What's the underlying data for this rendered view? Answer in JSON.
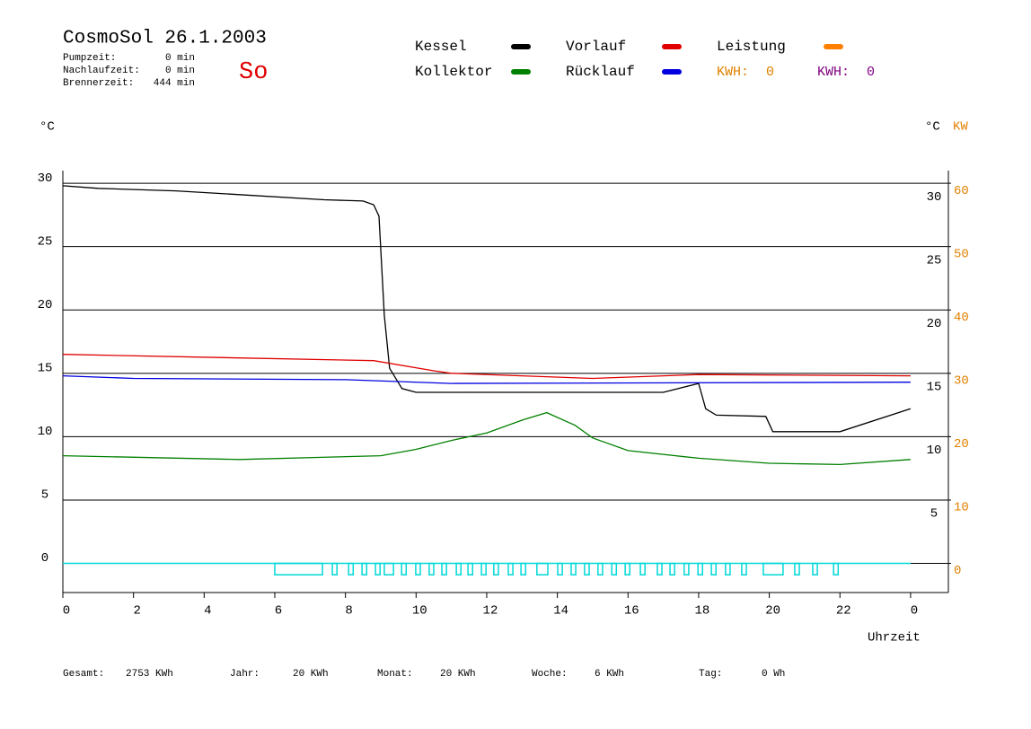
{
  "chart_data": {
    "type": "line",
    "title": "CosmoSol 26.1.2003",
    "day": "So",
    "info": [
      {
        "label": "Pumpzeit:",
        "value": "0 min"
      },
      {
        "label": "Nachlaufzeit:",
        "value": "0 min"
      },
      {
        "label": "Brennerzeit:",
        "value": "444 min"
      }
    ],
    "y_label": "°C",
    "y2_label_left": "°C",
    "y2_label": "KW",
    "x_label": "Uhrzeit",
    "xlim": [
      0,
      25.07
    ],
    "xticks": [
      0,
      2,
      4,
      6,
      8,
      10,
      12,
      14,
      16,
      18,
      20,
      22,
      {
        "value": 24,
        "label": "0"
      }
    ],
    "ylim": [
      -2.3,
      31
    ],
    "yticks": [
      0,
      5,
      10,
      15,
      20,
      25,
      30
    ],
    "y2lim": [
      -4.6,
      62
    ],
    "y2ticks": [
      0,
      10,
      20,
      30,
      40,
      50,
      60
    ],
    "y2_color": "#e08000",
    "grid": true,
    "series": [
      {
        "name": "Kessel",
        "color": "#000000",
        "x": [
          0,
          1,
          3.2,
          7.4,
          8.5,
          8.8,
          8.95,
          9.1,
          9.25,
          9.6,
          10,
          17,
          18,
          18.2,
          18.5,
          19.9,
          20.1,
          22,
          24
        ],
        "values": [
          29.8,
          29.6,
          29.4,
          28.7,
          28.6,
          28.3,
          27.4,
          19.6,
          15.4,
          13.8,
          13.5,
          13.5,
          14.2,
          12.2,
          11.7,
          11.6,
          10.4,
          10.4,
          12.2
        ]
      },
      {
        "name": "Kollektor",
        "color": "#008000",
        "x": [
          0,
          5,
          9,
          10,
          11,
          12,
          13,
          13.7,
          14.5,
          15,
          16,
          18,
          20,
          22,
          24
        ],
        "values": [
          8.5,
          8.2,
          8.5,
          9.0,
          9.7,
          10.3,
          11.3,
          11.9,
          10.9,
          9.9,
          8.9,
          8.3,
          7.9,
          7.8,
          8.2
        ]
      },
      {
        "name": "Vorlauf",
        "color": "#e00000",
        "x": [
          0,
          8.8,
          10.5,
          11,
          15,
          18,
          24
        ],
        "values": [
          16.5,
          16.0,
          15.2,
          15.0,
          14.6,
          14.9,
          14.8
        ]
      },
      {
        "name": "Rücklauf",
        "color": "#0000e0",
        "x": [
          0,
          2,
          8,
          11,
          24
        ],
        "values": [
          14.8,
          14.6,
          14.5,
          14.2,
          14.3
        ]
      },
      {
        "name": "Leistung",
        "color": "#ff8000",
        "x": [],
        "values": []
      }
    ],
    "kwh": [
      {
        "label": "KWH:",
        "value": 0,
        "color": "#e08000"
      },
      {
        "label": "KWH:",
        "value": 0,
        "color": "#800080"
      }
    ],
    "pump": {
      "color": "#00d8d8",
      "base": 0,
      "level": -0.9,
      "end": 24,
      "spans": [
        [
          6,
          7.35
        ],
        [
          7.63,
          7.76
        ],
        [
          8.09,
          8.22
        ],
        [
          8.47,
          8.6
        ],
        [
          8.85,
          8.98
        ],
        [
          9.1,
          9.36
        ],
        [
          9.59,
          9.72
        ],
        [
          9.99,
          10.12
        ],
        [
          10.37,
          10.5
        ],
        [
          10.73,
          10.86
        ],
        [
          11.14,
          11.27
        ],
        [
          11.47,
          11.6
        ],
        [
          11.85,
          11.98
        ],
        [
          12.2,
          12.33
        ],
        [
          12.61,
          12.74
        ],
        [
          12.97,
          13.1
        ],
        [
          13.42,
          13.73
        ],
        [
          14.01,
          14.14
        ],
        [
          14.39,
          14.52
        ],
        [
          14.77,
          14.9
        ],
        [
          15.15,
          15.28
        ],
        [
          15.54,
          15.67
        ],
        [
          15.92,
          16.05
        ],
        [
          16.35,
          16.48
        ],
        [
          16.83,
          16.96
        ],
        [
          17.19,
          17.32
        ],
        [
          17.59,
          17.72
        ],
        [
          17.98,
          18.11
        ],
        [
          18.36,
          18.49
        ],
        [
          18.76,
          18.89
        ],
        [
          19.22,
          19.35
        ],
        [
          19.83,
          20.39
        ],
        [
          20.72,
          20.85
        ],
        [
          21.23,
          21.36
        ],
        [
          21.82,
          21.95
        ]
      ]
    },
    "totals": [
      {
        "label": "Gesamt:",
        "value": "2753 KWh"
      },
      {
        "label": "Jahr:",
        "value": "20 KWh"
      },
      {
        "label": "Monat:",
        "value": "20 KWh"
      },
      {
        "label": "Woche:",
        "value": "6 KWh"
      },
      {
        "label": "Tag:",
        "value": "0 Wh"
      }
    ]
  }
}
